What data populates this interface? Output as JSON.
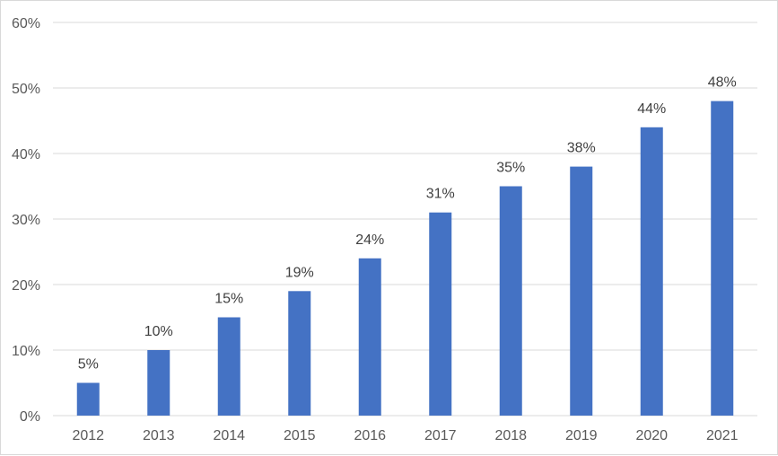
{
  "chart_data": {
    "type": "bar",
    "categories": [
      "2012",
      "2013",
      "2014",
      "2015",
      "2016",
      "2017",
      "2018",
      "2019",
      "2020",
      "2021"
    ],
    "values": [
      5,
      10,
      15,
      19,
      24,
      31,
      35,
      38,
      44,
      48
    ],
    "data_labels": [
      "5%",
      "10%",
      "15%",
      "19%",
      "24%",
      "31%",
      "35%",
      "38%",
      "44%",
      "48%"
    ],
    "y_ticks": [
      "0%",
      "10%",
      "20%",
      "30%",
      "40%",
      "50%",
      "60%"
    ],
    "y_tick_values": [
      0,
      10,
      20,
      30,
      40,
      50,
      60
    ],
    "ylim": [
      0,
      60
    ],
    "grid": true,
    "legend": "none",
    "bar_color": "#4472c4",
    "grid_color": "#d9d9d9",
    "title": "",
    "xlabel": "",
    "ylabel": ""
  }
}
